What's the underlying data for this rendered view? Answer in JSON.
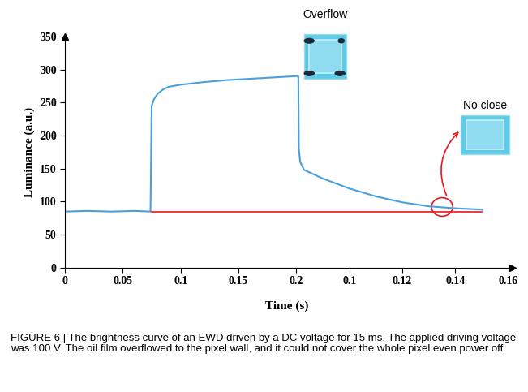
{
  "chart_data": [
    {
      "type": "line",
      "y_label": "Luminance (a.u.)",
      "x_label": "Time (s)",
      "caption": "FIGURE 6 | The brightness curve of an EWD driven by a DC voltage for 15 ms. The applied driving voltage was 100 V. The oil film overflowed to the pixel wall, and it could not cover the whole pixel even power off.",
      "xlim": [
        0,
        0.2
      ],
      "xticks": [
        0,
        0.05,
        0.1,
        0.15,
        0.2
      ],
      "ylim": [
        0,
        350
      ],
      "yticks": [
        0,
        50,
        100,
        150,
        200,
        250,
        300,
        350
      ],
      "series": [
        {
          "color": "#4a9fdf",
          "x": [
            0,
            0.02,
            0.04,
            0.06,
            0.074,
            0.075,
            0.077,
            0.08,
            0.085,
            0.09,
            0.1,
            0.12,
            0.14,
            0.16,
            0.18,
            0.2
          ],
          "values": [
            85,
            86,
            85,
            86,
            85,
            245,
            255,
            263,
            270,
            274,
            277,
            281,
            284,
            286,
            288,
            290
          ]
        },
        {
          "color": "#e8191e",
          "x": [
            0.075,
            0.2
          ],
          "values": [
            84,
            84
          ]
        }
      ]
    },
    {
      "type": "line",
      "annotations": [
        "Overflow",
        "No close"
      ],
      "xlim": [
        0.08,
        0.16
      ],
      "xticks": [
        0.1,
        0.12,
        0.14,
        0.16
      ],
      "ylim": [
        0,
        350
      ],
      "tick_labels": "x",
      "series": [
        {
          "color": "#4a9fdf",
          "x": [
            0.08,
            0.0808,
            0.081,
            0.0815,
            0.083,
            0.09,
            0.1,
            0.11,
            0.12,
            0.13,
            0.14,
            0.15
          ],
          "values": [
            290,
            290,
            180,
            160,
            148,
            135,
            120,
            108,
            99,
            93,
            90,
            88
          ]
        },
        {
          "color": "#e8191e",
          "x": [
            0.08,
            0.15
          ],
          "values": [
            84,
            84
          ]
        }
      ]
    }
  ]
}
